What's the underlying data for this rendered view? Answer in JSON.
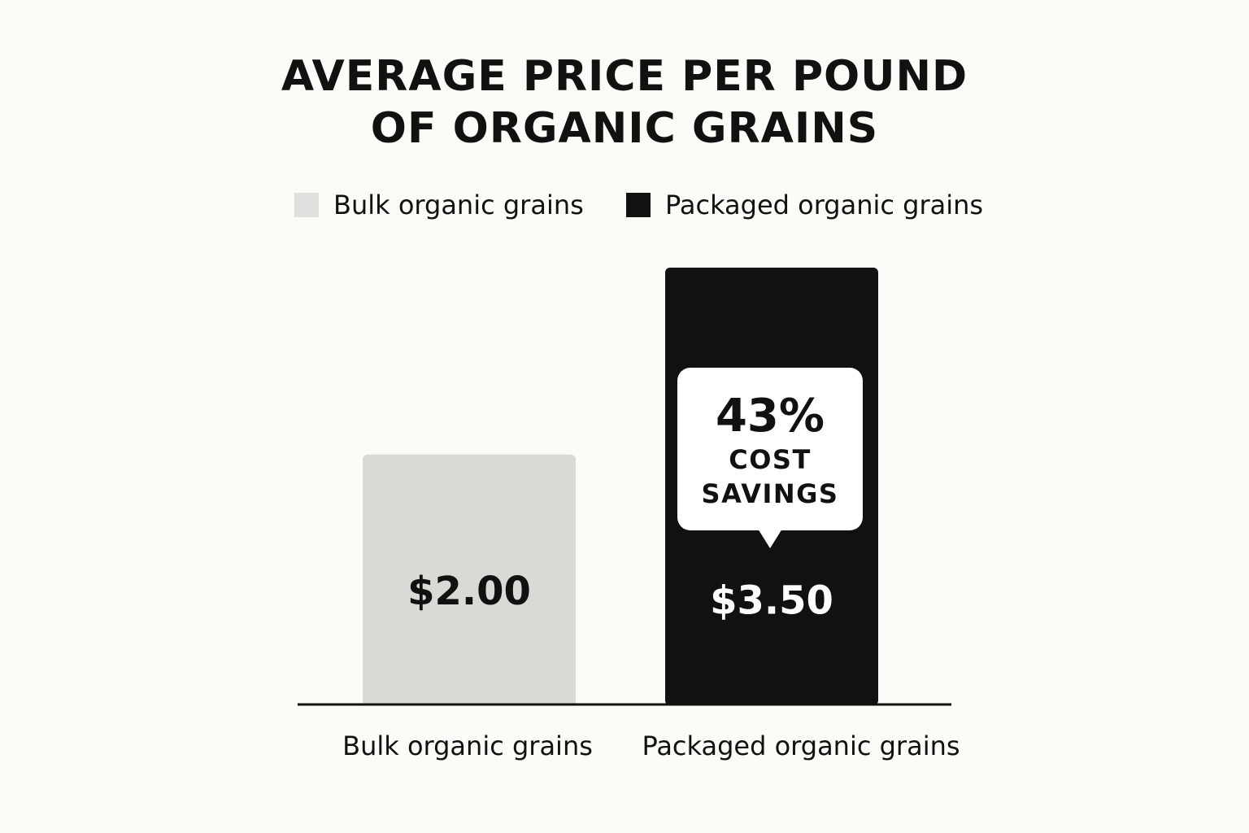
{
  "chart_data": {
    "type": "bar",
    "title": [
      "AVERAGE PRICE PER POUND",
      "OF ORGANIC GRAINS"
    ],
    "categories": [
      "Bulk organic grains",
      "Packaged organic grains"
    ],
    "values": [
      2.0,
      3.5
    ],
    "value_labels": [
      "$2.00",
      "$3.50"
    ],
    "colors": [
      "#d9d9d6",
      "#111111"
    ],
    "legend": {
      "placement": "top",
      "items": [
        {
          "label": "Bulk organic grains",
          "color": "#e0e0de"
        },
        {
          "label": "Packaged organic grains",
          "color": "#111111"
        }
      ]
    },
    "ylim": [
      0,
      3.5
    ],
    "grid": false,
    "annotation": {
      "percent": "43%",
      "lines": [
        "COST",
        "SAVINGS"
      ]
    }
  }
}
